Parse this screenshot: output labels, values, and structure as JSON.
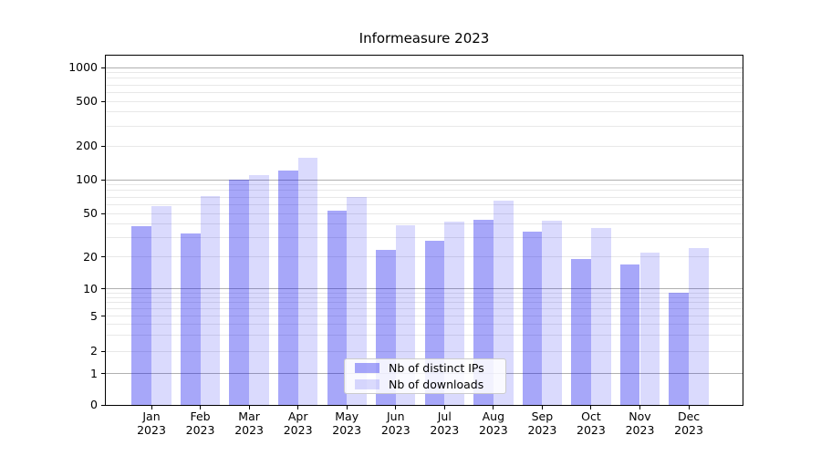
{
  "title": "Informeasure 2023",
  "chart_data": {
    "type": "bar",
    "title": "Informeasure 2023",
    "categories": [
      "Jan",
      "Feb",
      "Mar",
      "Apr",
      "May",
      "Jun",
      "Jul",
      "Aug",
      "Sep",
      "Oct",
      "Nov",
      "Dec"
    ],
    "year_label": "2023",
    "series": [
      {
        "name": "Nb of distinct IPs",
        "values": [
          38,
          33,
          100,
          121,
          53,
          23,
          28,
          44,
          34,
          19,
          17,
          9
        ]
      },
      {
        "name": "Nb of downloads",
        "values": [
          58,
          72,
          110,
          156,
          70,
          39,
          42,
          65,
          43,
          37,
          22,
          24
        ]
      }
    ],
    "yscale": "symlog",
    "yticks": [
      0,
      1,
      2,
      5,
      10,
      20,
      50,
      100,
      200,
      500,
      1000
    ],
    "ylim": [
      0,
      1300
    ],
    "grid": true,
    "legend_position": "lower center"
  },
  "legend": {
    "items": [
      {
        "label": "Nb of distinct IPs"
      },
      {
        "label": "Nb of downloads"
      }
    ]
  },
  "colors": {
    "bar_ips": "rgba(0,0,238,0.345)",
    "bar_downloads": "rgba(0,0,238,0.145)",
    "grid_major": "#b0b0b0",
    "grid_minor": "#e8e8e8",
    "axis": "#000000",
    "background": "#ffffff"
  }
}
